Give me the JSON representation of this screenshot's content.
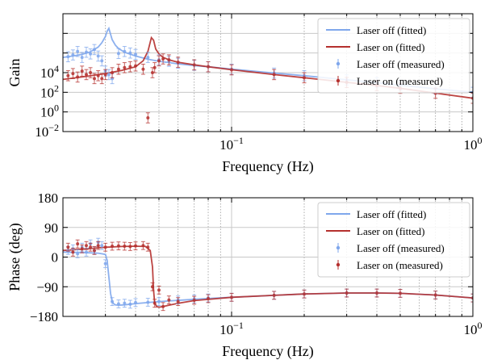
{
  "colors": {
    "laser_off": "#7fa7ec",
    "laser_on": "#b5302e",
    "grid_major": "#c8c8c8",
    "grid_minor": "#9a9a9a"
  },
  "chart_data": [
    {
      "type": "line",
      "xscale": "log",
      "yscale": "log",
      "xlabel": "Frequency (Hz)",
      "ylabel": "Gain",
      "xlim": [
        0.02,
        1.0
      ],
      "ylim": [
        0.01,
        10000
      ],
      "x_tick_labels": [
        "10^-1",
        "10^0"
      ],
      "y_tick_labels": [
        "10^-2",
        "10^0",
        "10^2",
        "10^4"
      ],
      "grid": true,
      "legend": "top-right",
      "series": [
        {
          "name": "Laser off (fitted)",
          "style": "line",
          "x": [
            0.02,
            0.022,
            0.024,
            0.026,
            0.028,
            0.029,
            0.03,
            0.0305,
            0.031,
            0.0315,
            0.032,
            0.033,
            0.034,
            0.036,
            0.04,
            0.045,
            0.05,
            0.06,
            0.07,
            0.08,
            0.1,
            0.15,
            0.2,
            0.3,
            0.4,
            0.5,
            0.7,
            1.0
          ],
          "values": [
            60,
            70,
            85,
            115,
            200,
            330,
            700,
            1300,
            1800,
            900,
            480,
            250,
            170,
            110,
            70,
            48,
            38,
            28,
            23,
            20,
            15,
            9.5,
            7,
            4.3,
            3.1,
            2.3,
            1.5,
            1.0
          ]
        },
        {
          "name": "Laser on (fitted)",
          "style": "line",
          "x": [
            0.02,
            0.025,
            0.03,
            0.035,
            0.04,
            0.043,
            0.045,
            0.0465,
            0.0475,
            0.0485,
            0.05,
            0.052,
            0.055,
            0.06,
            0.07,
            0.08,
            0.1,
            0.15,
            0.2,
            0.3,
            0.4,
            0.5,
            0.7,
            1.0
          ],
          "values": [
            4.5,
            6.5,
            9,
            13,
            20,
            40,
            120,
            600,
            450,
            160,
            90,
            60,
            45,
            34,
            25,
            20,
            14,
            8,
            5.5,
            3.2,
            2.2,
            1.6,
            0.9,
            0.5
          ]
        },
        {
          "name": "Laser off (measured)",
          "style": "points-errorbars",
          "x": [
            0.021,
            0.022,
            0.023,
            0.024,
            0.025,
            0.026,
            0.027,
            0.028,
            0.029,
            0.03,
            0.031,
            0.032,
            0.034,
            0.036,
            0.038,
            0.04,
            0.045,
            0.05,
            0.055,
            0.06,
            0.07,
            0.08,
            0.1,
            0.15,
            0.2,
            0.3,
            0.4,
            0.5,
            0.7,
            1.0
          ],
          "values": [
            65,
            80,
            120,
            60,
            110,
            90,
            150,
            70,
            40,
            12,
            8,
            5,
            95,
            120,
            100,
            85,
            60,
            45,
            38,
            30,
            24,
            20,
            15,
            9.5,
            7,
            4.3,
            3.1,
            2.3,
            1.5,
            1.0
          ]
        },
        {
          "name": "Laser on (measured)",
          "style": "points-errorbars",
          "x": [
            0.021,
            0.022,
            0.023,
            0.024,
            0.025,
            0.026,
            0.027,
            0.028,
            0.029,
            0.03,
            0.032,
            0.034,
            0.036,
            0.038,
            0.04,
            0.043,
            0.045,
            0.047,
            0.048,
            0.05,
            0.052,
            0.055,
            0.06,
            0.07,
            0.08,
            0.1,
            0.15,
            0.2,
            0.3,
            0.4,
            0.5,
            0.7,
            1.0
          ],
          "values": [
            7,
            9,
            6,
            12,
            8,
            10,
            5,
            7,
            5,
            8,
            10,
            15,
            18,
            20,
            22,
            15,
            0.05,
            10,
            18,
            40,
            50,
            45,
            34,
            25,
            20,
            14,
            8,
            5.5,
            3.2,
            2.2,
            1.6,
            0.9,
            0.5
          ]
        }
      ]
    },
    {
      "type": "line",
      "xscale": "log",
      "xlabel": "Frequency (Hz)",
      "ylabel": "Phase (deg)",
      "xlim": [
        0.02,
        1.0
      ],
      "ylim": [
        -180,
        180
      ],
      "x_tick_labels": [
        "10^-1",
        "10^0"
      ],
      "y_tick_labels": [
        "-180",
        "-90",
        "0",
        "90",
        "180"
      ],
      "grid": true,
      "legend": "top-right",
      "series": [
        {
          "name": "Laser off (fitted)",
          "style": "line",
          "x": [
            0.02,
            0.024,
            0.028,
            0.03,
            0.0305,
            0.031,
            0.0315,
            0.032,
            0.0325,
            0.033,
            0.034,
            0.036,
            0.04,
            0.05,
            0.07,
            0.1,
            0.15,
            0.2,
            0.3,
            0.4,
            0.5,
            0.7,
            1.0
          ],
          "values": [
            15,
            14,
            12,
            8,
            -10,
            -60,
            -110,
            -135,
            -142,
            -145,
            -146,
            -145,
            -141,
            -135,
            -128,
            -122,
            -116,
            -112,
            -109,
            -109,
            -110,
            -115,
            -124
          ]
        },
        {
          "name": "Laser on (fitted)",
          "style": "line",
          "x": [
            0.02,
            0.025,
            0.03,
            0.035,
            0.04,
            0.044,
            0.046,
            0.047,
            0.0475,
            0.048,
            0.049,
            0.05,
            0.052,
            0.055,
            0.06,
            0.07,
            0.1,
            0.15,
            0.2,
            0.3,
            0.4,
            0.5,
            0.7,
            1.0
          ],
          "values": [
            20,
            25,
            30,
            32,
            33,
            32,
            20,
            -30,
            -100,
            -140,
            -150,
            -152,
            -150,
            -146,
            -140,
            -132,
            -122,
            -116,
            -112,
            -109,
            -109,
            -110,
            -115,
            -124
          ]
        },
        {
          "name": "Laser off (measured)",
          "style": "points-errorbars",
          "x": [
            0.021,
            0.022,
            0.023,
            0.024,
            0.025,
            0.026,
            0.027,
            0.028,
            0.029,
            0.03,
            0.032,
            0.034,
            0.036,
            0.038,
            0.04,
            0.045,
            0.05,
            0.06,
            0.07,
            0.08,
            0.1,
            0.15,
            0.2,
            0.3,
            0.4,
            0.5,
            0.7,
            1.0
          ],
          "values": [
            20,
            25,
            10,
            30,
            15,
            40,
            20,
            45,
            35,
            -20,
            -135,
            -142,
            -140,
            -143,
            -138,
            -137,
            -135,
            -130,
            -127,
            -124,
            -122,
            -116,
            -112,
            -109,
            -109,
            -110,
            -115,
            -124
          ]
        },
        {
          "name": "Laser on (measured)",
          "style": "points-errorbars",
          "x": [
            0.021,
            0.022,
            0.023,
            0.024,
            0.025,
            0.026,
            0.027,
            0.028,
            0.03,
            0.032,
            0.034,
            0.036,
            0.038,
            0.04,
            0.043,
            0.045,
            0.047,
            0.048,
            0.05,
            0.052,
            0.055,
            0.06,
            0.07,
            0.08,
            0.1,
            0.15,
            0.2,
            0.3,
            0.4,
            0.5,
            0.7,
            1.0
          ],
          "values": [
            30,
            15,
            40,
            25,
            35,
            30,
            20,
            35,
            30,
            33,
            34,
            33,
            32,
            34,
            35,
            30,
            -90,
            -140,
            -100,
            -150,
            -130,
            -135,
            -131,
            -126,
            -122,
            -116,
            -112,
            -109,
            -109,
            -110,
            -115,
            -124
          ]
        }
      ]
    }
  ]
}
